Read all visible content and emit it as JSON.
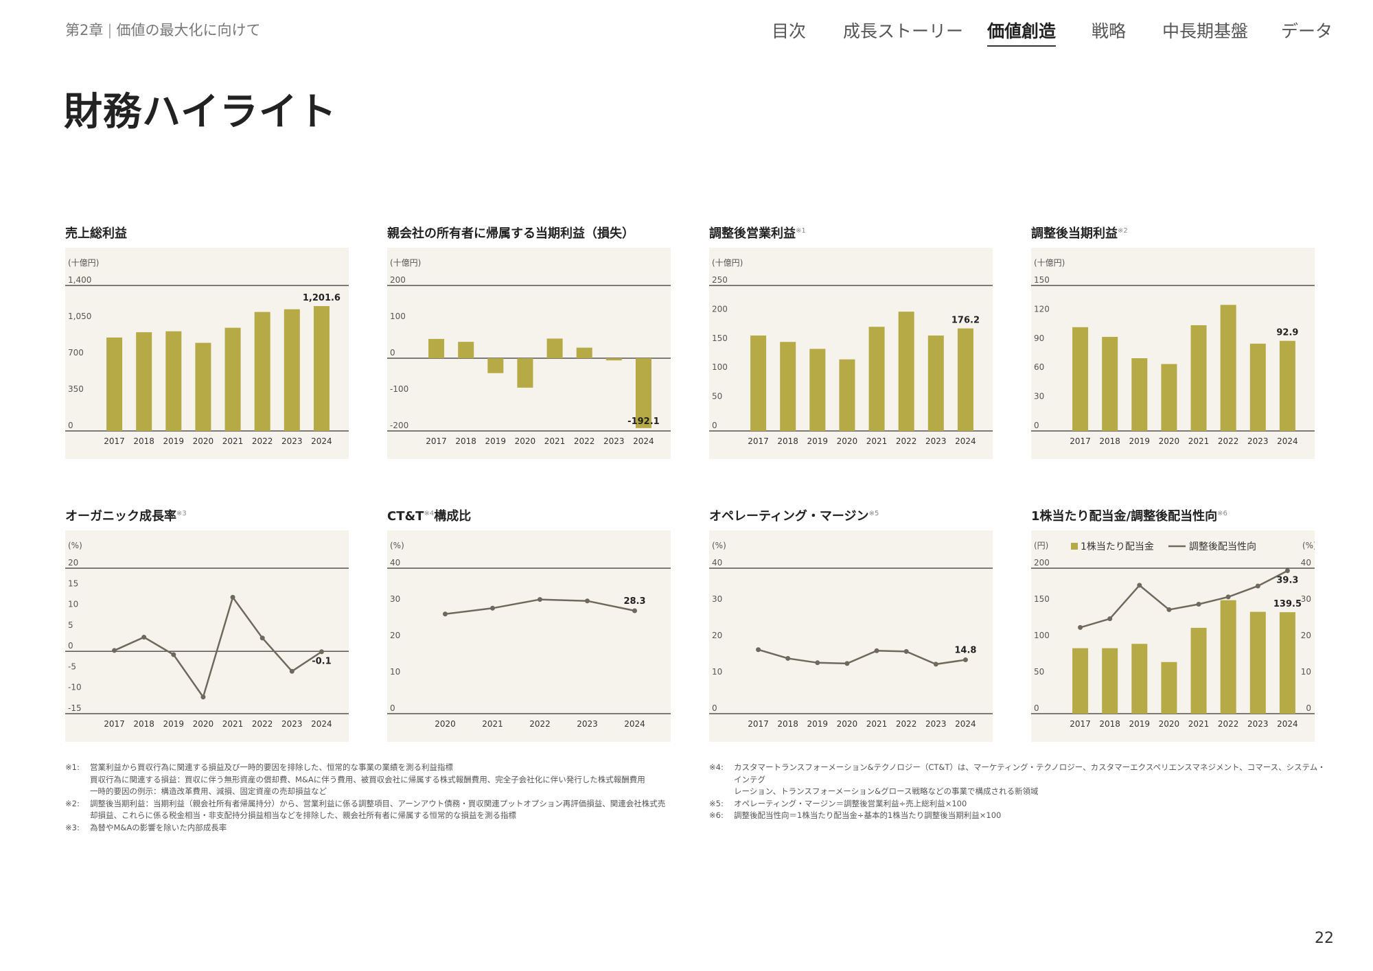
{
  "header": {
    "chapter": "第2章",
    "section": "価値の最大化に向けて",
    "nav": [
      {
        "label": "目次",
        "active": false
      },
      {
        "label": "成長ストーリー",
        "active": false
      },
      {
        "label": "価値創造",
        "active": true
      },
      {
        "label": "戦略",
        "active": false
      },
      {
        "label": "中長期基盤",
        "active": false
      },
      {
        "label": "データ",
        "active": false
      }
    ]
  },
  "page_title": "財務ハイライト",
  "colors": {
    "bar": "#b6aa46",
    "line": "#6f685d",
    "panel": "#f6f2ec",
    "axis": "#333333"
  },
  "chart_data": [
    {
      "type": "bar",
      "title": "売上総利益",
      "sup": "",
      "title_rest": "",
      "unit": "(十億円)",
      "categories": [
        "2017",
        "2018",
        "2019",
        "2020",
        "2021",
        "2022",
        "2023",
        "2024"
      ],
      "values": [
        899,
        950,
        959,
        848,
        993,
        1145,
        1171,
        1201.6
      ],
      "ylim": [
        0,
        1400
      ],
      "yticks": [
        "0",
        "350",
        "700",
        "1,050",
        "1,400"
      ],
      "ytick_values": [
        0,
        350,
        700,
        1050,
        1400
      ],
      "data_labels": [
        {
          "index": 7,
          "text": "1,201.6",
          "pos": "above"
        }
      ]
    },
    {
      "type": "bar",
      "title": "親会社の所有者に帰属する当期利益（損失）",
      "sup": "",
      "title_rest": "",
      "unit": "(十億円)",
      "categories": [
        "2017",
        "2018",
        "2019",
        "2020",
        "2021",
        "2022",
        "2023",
        "2024"
      ],
      "values": [
        53,
        45,
        -41,
        -81,
        54,
        29,
        -6,
        -192.1
      ],
      "ylim": [
        -200,
        200
      ],
      "yticks": [
        "-200",
        "-100",
        "0",
        "100",
        "200"
      ],
      "ytick_values": [
        -200,
        -100,
        0,
        100,
        200
      ],
      "data_labels": [
        {
          "index": 7,
          "text": "-192.1",
          "pos": "bottom"
        }
      ]
    },
    {
      "type": "bar",
      "title": "調整後営業利益",
      "sup": "※1",
      "title_rest": "",
      "unit": "(十億円)",
      "categories": [
        "2017",
        "2018",
        "2019",
        "2020",
        "2021",
        "2022",
        "2023",
        "2024"
      ],
      "values": [
        164,
        153,
        141,
        123,
        179,
        205,
        164,
        176.2
      ],
      "ylim": [
        0,
        250
      ],
      "yticks": [
        "0",
        "50",
        "100",
        "150",
        "200",
        "250"
      ],
      "ytick_values": [
        0,
        50,
        100,
        150,
        200,
        250
      ],
      "data_labels": [
        {
          "index": 7,
          "text": "176.2",
          "pos": "above"
        }
      ]
    },
    {
      "type": "bar",
      "title": "調整後当期利益",
      "sup": "※2",
      "title_rest": "",
      "unit": "(十億円)",
      "categories": [
        "2017",
        "2018",
        "2019",
        "2020",
        "2021",
        "2022",
        "2023",
        "2024"
      ],
      "values": [
        107,
        97,
        75,
        69,
        109,
        130,
        90,
        92.9
      ],
      "ylim": [
        0,
        150
      ],
      "yticks": [
        "0",
        "30",
        "60",
        "90",
        "120",
        "150"
      ],
      "ytick_values": [
        0,
        30,
        60,
        90,
        120,
        150
      ],
      "data_labels": [
        {
          "index": 7,
          "text": "92.9",
          "pos": "above"
        }
      ]
    },
    {
      "type": "line",
      "title": "オーガニック成長率",
      "sup": "※3",
      "title_rest": "",
      "unit": "(%)",
      "categories": [
        "2017",
        "2018",
        "2019",
        "2020",
        "2021",
        "2022",
        "2023",
        "2024"
      ],
      "values": [
        0.2,
        3.4,
        -0.8,
        -11.0,
        13.0,
        3.2,
        -4.8,
        -0.1
      ],
      "ylim": [
        -15,
        20
      ],
      "yticks": [
        "-15",
        "-10",
        "-5",
        "0",
        "5",
        "10",
        "15",
        "20"
      ],
      "ytick_values": [
        -15,
        -10,
        -5,
        0,
        5,
        10,
        15,
        20
      ],
      "data_labels": [
        {
          "index": 7,
          "text": "-0.1",
          "pos": "below"
        }
      ]
    },
    {
      "type": "line",
      "title": "CT&T",
      "sup": "※4",
      "title_rest": "構成比",
      "unit": "(%)",
      "categories": [
        "2020",
        "2021",
        "2022",
        "2023",
        "2024"
      ],
      "values": [
        27.4,
        29.0,
        31.4,
        31.0,
        28.3
      ],
      "ylim": [
        0,
        40
      ],
      "yticks": [
        "0",
        "10",
        "20",
        "30",
        "40"
      ],
      "ytick_values": [
        0,
        10,
        20,
        30,
        40
      ],
      "data_labels": [
        {
          "index": 4,
          "text": "28.3",
          "pos": "above"
        }
      ]
    },
    {
      "type": "line",
      "title": "オペレーティング・マージン",
      "sup": "※5",
      "title_rest": "",
      "unit": "(%)",
      "categories": [
        "2017",
        "2018",
        "2019",
        "2020",
        "2021",
        "2022",
        "2023",
        "2024"
      ],
      "values": [
        17.6,
        15.2,
        14.0,
        13.8,
        17.3,
        17.1,
        13.6,
        14.8
      ],
      "ylim": [
        0,
        40
      ],
      "yticks": [
        "0",
        "10",
        "20",
        "30",
        "40"
      ],
      "ytick_values": [
        0,
        10,
        20,
        30,
        40
      ],
      "data_labels": [
        {
          "index": 7,
          "text": "14.8",
          "pos": "above"
        }
      ]
    },
    {
      "type": "bar+line",
      "title": "1株当たり配当金/調整後配当性向",
      "sup": "※6",
      "title_rest": "",
      "unit": "(円)",
      "unit_right": "(%)",
      "categories": [
        "2017",
        "2018",
        "2019",
        "2020",
        "2021",
        "2022",
        "2023",
        "2024"
      ],
      "legend": [
        "1株当たり配当金",
        "調整後配当性向"
      ],
      "values": [
        90,
        90,
        96,
        71,
        118,
        156,
        140,
        139.5
      ],
      "values_right": [
        23.7,
        26.1,
        35.3,
        28.6,
        30.1,
        32.1,
        35.1,
        39.3
      ],
      "ylim": [
        0,
        200
      ],
      "yticks": [
        "0",
        "50",
        "100",
        "150",
        "200"
      ],
      "ytick_values": [
        0,
        50,
        100,
        150,
        200
      ],
      "ylim_right": [
        0,
        40
      ],
      "yticks_right": [
        "0",
        "10",
        "20",
        "30",
        "40"
      ],
      "ytick_values_right": [
        0,
        10,
        20,
        30,
        40
      ],
      "data_labels": [
        {
          "index": 7,
          "text": "139.5",
          "pos": "above"
        }
      ],
      "data_labels_right": [
        {
          "index": 7,
          "text": "39.3",
          "pos": "below"
        }
      ]
    }
  ],
  "footnotes_left": [
    {
      "mark": "※1:",
      "lines": [
        "営業利益から買収行為に関連する損益及び一時的要因を排除した、恒常的な事業の業績を測る利益指標",
        "買収行為に関連する損益：買収に伴う無形資産の償却費、M&Aに伴う費用、被買収会社に帰属する株式報酬費用、完全子会社化に伴い発行した株式報酬費用",
        "一時的要因の例示：構造改革費用、減損、固定資産の売却損益など"
      ]
    },
    {
      "mark": "※2:",
      "lines": [
        "調整後当期利益：当期利益（親会社所有者帰属持分）から、営業利益に係る調整項目、アーンアウト債務・買収関連プットオプション再評価損益、関連会社株式売",
        "却損益、これらに係る税金相当・非支配持分損益相当などを排除した、親会社所有者に帰属する恒常的な損益を測る指標"
      ]
    },
    {
      "mark": "※3:",
      "lines": [
        "為替やM&Aの影響を除いた内部成長率"
      ]
    }
  ],
  "footnotes_right": [
    {
      "mark": "※4:",
      "lines": [
        "カスタマートランスフォーメーション&テクノロジー（CT&T）は、マーケティング・テクノロジー、カスタマーエクスペリエンスマネジメント、コマース、システム・インテグ",
        "レーション、トランスフォーメーション&グロース戦略などの事業で構成される新領域"
      ]
    },
    {
      "mark": "※5:",
      "lines": [
        "オペレーティング・マージン＝調整後営業利益÷売上総利益×100"
      ]
    },
    {
      "mark": "※6:",
      "lines": [
        "調整後配当性向＝1株当たり配当金÷基本的1株当たり調整後当期利益×100"
      ]
    }
  ],
  "page_number": "22"
}
